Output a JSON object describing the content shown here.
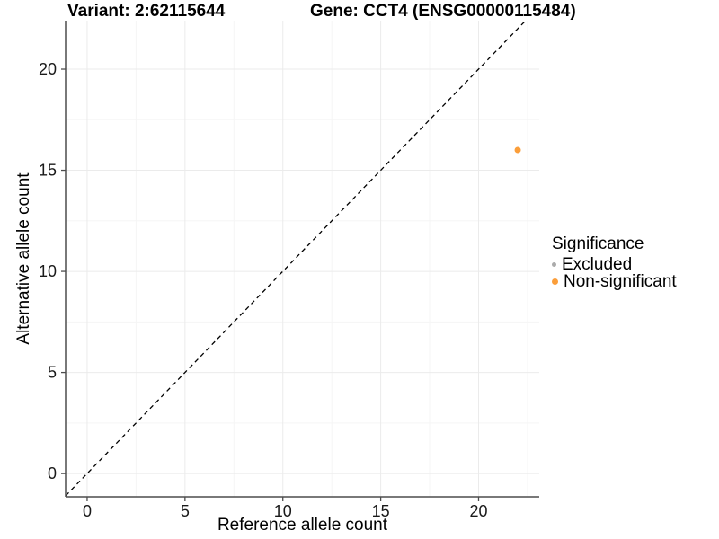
{
  "chart_data": {
    "type": "scatter",
    "title_left": "Variant: 2:62115644",
    "title_right": "Gene: CCT4 (ENSG00000115484)",
    "xlabel": "Reference allele count",
    "ylabel": "Alternative allele count",
    "xlim": [
      -1.1,
      23.1
    ],
    "ylim": [
      -1.15,
      22.4
    ],
    "x_major_ticks": [
      0,
      5,
      10,
      15,
      20
    ],
    "y_major_ticks": [
      0,
      5,
      10,
      15,
      20
    ],
    "x_minor_gridlines": [
      2.5,
      7.5,
      12.5,
      17.5,
      22.5
    ],
    "y_minor_gridlines": [
      2.5,
      7.5,
      12.5,
      17.5
    ],
    "grid": {
      "show": true,
      "major_color": "#EBEBEB",
      "minor_color": "#F5F5F5"
    },
    "identity_line": {
      "slope": 1,
      "intercept": 0,
      "style": "dashed",
      "color": "#000000"
    },
    "series": [
      {
        "name": "Excluded",
        "color": "#ABABAB",
        "marker_size": 5,
        "points": []
      },
      {
        "name": "Non-significant",
        "color": "#FB9E3A",
        "marker_size": 7,
        "points": [
          {
            "x": 22,
            "y": 16
          }
        ]
      }
    ],
    "legend": {
      "title": "Significance",
      "position": "right"
    },
    "axis_color": "#4D4D4D",
    "tick_label_color": "#1A1A1A",
    "tick_label_size": 18
  }
}
